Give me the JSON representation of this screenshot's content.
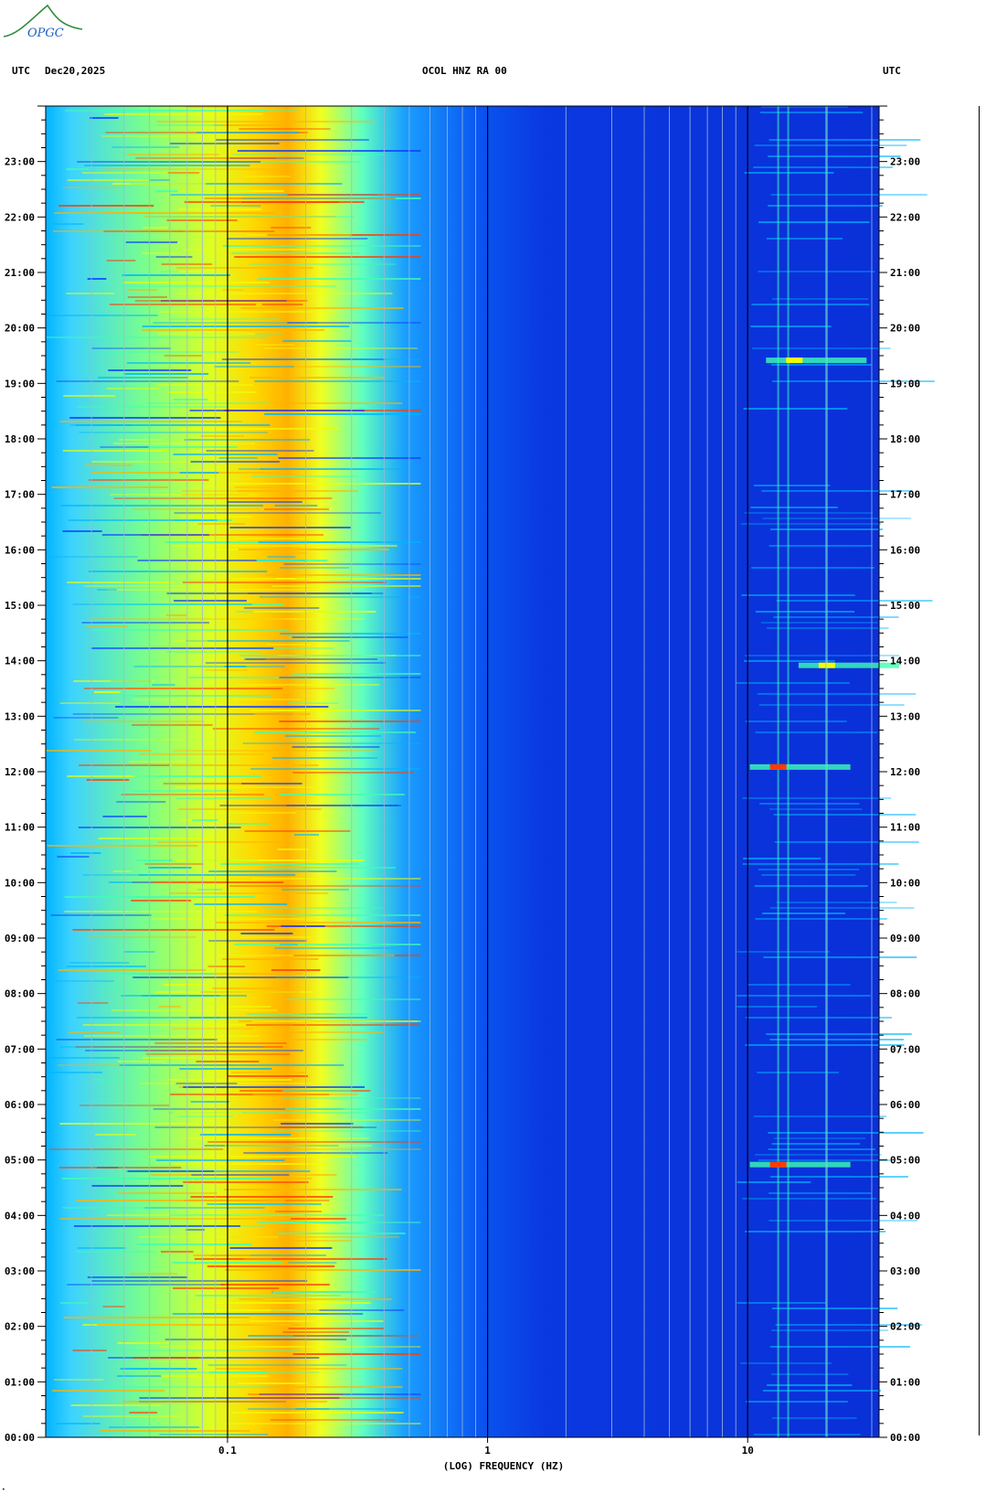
{
  "header": {
    "utc_left": "UTC",
    "date": "Dec20,2025",
    "station": "OCOL HNZ RA 00",
    "utc_right": "UTC"
  },
  "logo": {
    "text": "OPGC",
    "icon": "opgc-logo-icon",
    "color": "#2e8b3a"
  },
  "chart_data": {
    "type": "heatmap",
    "title": "",
    "xlabel": "(LOG) FREQUENCY (HZ)",
    "ylabel": "",
    "x_scale": "log",
    "xlim": [
      0.02,
      32
    ],
    "x_ticks": [
      {
        "value": 0.1,
        "label": "0.1"
      },
      {
        "value": 1,
        "label": "1"
      },
      {
        "value": 10,
        "label": "10"
      }
    ],
    "y_ticks": [
      "23:00",
      "22:00",
      "21:00",
      "20:00",
      "19:00",
      "18:00",
      "17:00",
      "16:00",
      "15:00",
      "14:00",
      "13:00",
      "12:00",
      "11:00",
      "10:00",
      "09:00",
      "08:00",
      "07:00",
      "06:00",
      "05:00",
      "04:00",
      "03:00",
      "02:00",
      "01:00",
      "00:00"
    ],
    "ylim_hours": [
      0,
      24
    ],
    "colormap": [
      "#0000c8",
      "#0a3cff",
      "#00b4ff",
      "#3cffb4",
      "#f0ff00",
      "#ffb400",
      "#ff3c00",
      "#c80000"
    ],
    "events": [
      {
        "time": "12:05",
        "freq_hz": 13,
        "level": "high"
      },
      {
        "time": "04:55",
        "freq_hz": 13,
        "level": "high"
      },
      {
        "time": "13:55",
        "freq_hz": 20,
        "level": "medium"
      },
      {
        "time": "19:25",
        "freq_hz": 15,
        "level": "medium"
      }
    ]
  }
}
